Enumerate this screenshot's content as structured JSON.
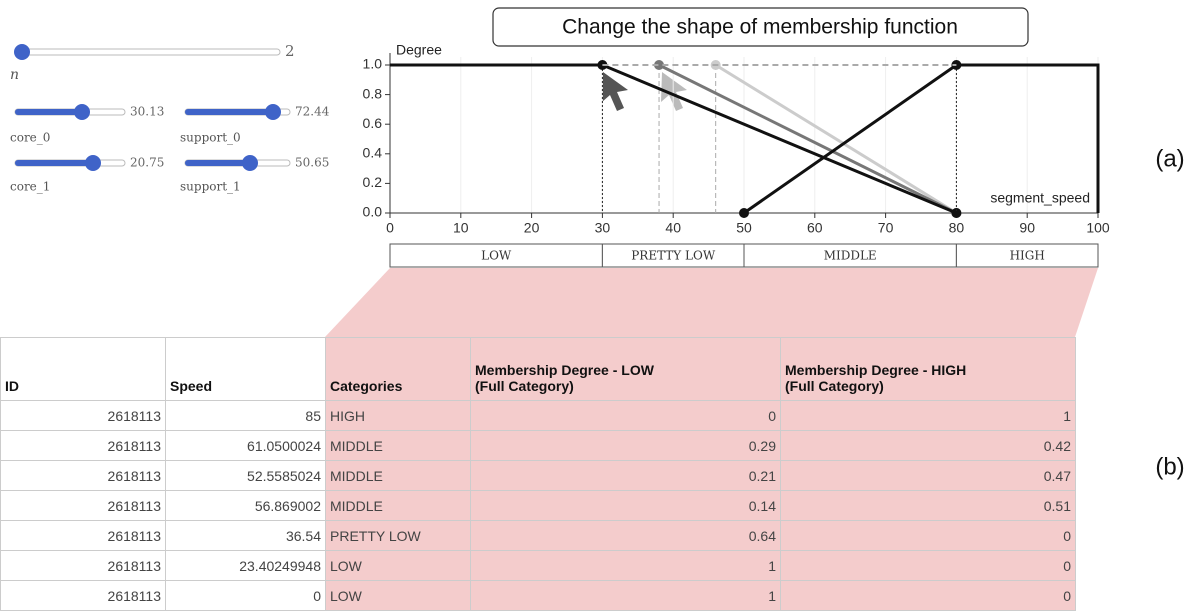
{
  "annotation": "Change the shape of membership function",
  "panel_labels": [
    "(a)",
    "(b)"
  ],
  "sliders": [
    {
      "label": "n",
      "value": 2
    },
    {
      "label": "core_0",
      "value": 30.13
    },
    {
      "label": "support_0",
      "value": 72.44
    },
    {
      "label": "core_1",
      "value": 20.75
    },
    {
      "label": "support_1",
      "value": 50.65
    }
  ],
  "chart_data": {
    "type": "line",
    "ylabel": "Degree",
    "xlabel": "segment_speed",
    "xlim": [
      0,
      100
    ],
    "ylim": [
      0,
      1
    ],
    "xticks": [
      0,
      10,
      20,
      30,
      40,
      50,
      60,
      70,
      80,
      90,
      100
    ],
    "yticks": [
      {
        "value": 0,
        "label": "0.0"
      },
      {
        "value": 0.2,
        "label": "0.2"
      },
      {
        "value": 0.4,
        "label": "0.4"
      },
      {
        "value": 0.6,
        "label": "0.6"
      },
      {
        "value": 0.8,
        "label": "0.8"
      },
      {
        "value": 1,
        "label": "1.0"
      }
    ],
    "grid": true,
    "series": [
      {
        "color": "#cccccc",
        "x": [
          46,
          80
        ],
        "values": [
          1,
          0
        ]
      },
      {
        "color": "#777777",
        "x": [
          38,
          80
        ],
        "values": [
          1,
          0
        ]
      },
      {
        "color": "#111111",
        "x": [
          0,
          30,
          80
        ],
        "values": [
          1,
          1,
          0
        ]
      },
      {
        "color": "#111111",
        "x": [
          50,
          80,
          100,
          100
        ],
        "values": [
          0,
          1,
          1,
          0
        ]
      }
    ],
    "bands": [
      {
        "label": "LOW",
        "range": [
          0,
          30
        ]
      },
      {
        "label": "PRETTY LOW",
        "range": [
          30,
          50
        ]
      },
      {
        "label": "MIDDLE",
        "range": [
          50,
          80
        ]
      },
      {
        "label": "HIGH",
        "range": [
          80,
          100
        ]
      }
    ]
  },
  "table": {
    "headers": [
      "ID",
      "Speed",
      "Categories",
      "Membership Degree - LOW\n(Full Category)",
      "Membership Degree - HIGH\n(Full Category)"
    ],
    "rows": [
      [
        "2618113",
        "85",
        "HIGH",
        "0",
        "1"
      ],
      [
        "2618113",
        "61.0500024",
        "MIDDLE",
        "0.29",
        "0.42"
      ],
      [
        "2618113",
        "52.5585024",
        "MIDDLE",
        "0.21",
        "0.47"
      ],
      [
        "2618113",
        "56.869002",
        "MIDDLE",
        "0.14",
        "0.51"
      ],
      [
        "2618113",
        "36.54",
        "PRETTY LOW",
        "0.64",
        "0"
      ],
      [
        "2618113",
        "23.40249948",
        "LOW",
        "1",
        "0"
      ],
      [
        "2618113",
        "0",
        "LOW",
        "1",
        "0"
      ]
    ]
  }
}
